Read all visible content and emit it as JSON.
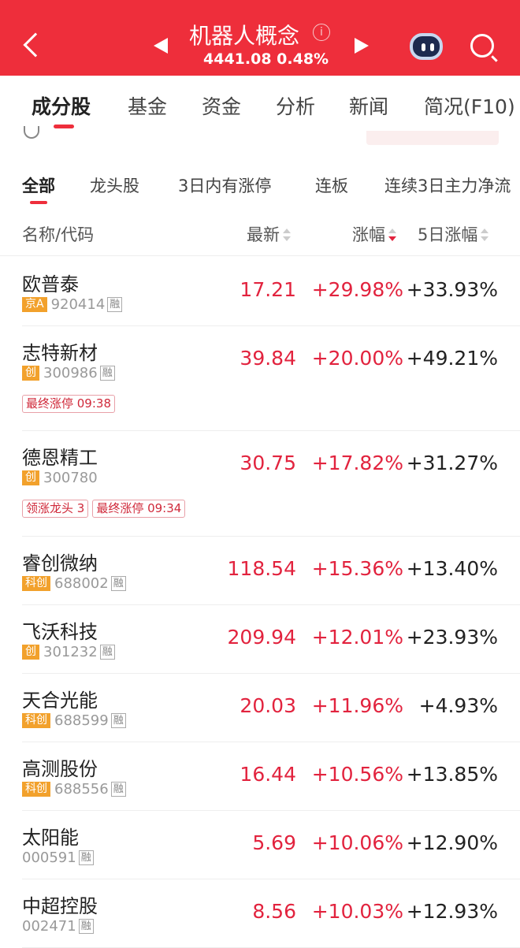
{
  "header": {
    "title": "机器人概念",
    "index_value": "4441.08",
    "index_change": "0.48%",
    "color": "#ee2e3b"
  },
  "tabs": [
    {
      "label": "成分股"
    },
    {
      "label": "基金"
    },
    {
      "label": "资金"
    },
    {
      "label": "分析"
    },
    {
      "label": "新闻"
    },
    {
      "label": "简况(F10)"
    }
  ],
  "subtabs": [
    {
      "label": "全部"
    },
    {
      "label": "龙头股"
    },
    {
      "label": "3日内有涨停"
    },
    {
      "label": "连板"
    },
    {
      "label": "连续3日主力净流"
    }
  ],
  "columns": {
    "name": "名称/代码",
    "price": "最新",
    "change": "涨幅",
    "change5d": "5日涨幅"
  },
  "stocks": [
    {
      "name": "欧普泰",
      "board": "京A",
      "code": "920414",
      "rong": "融",
      "price": "17.21",
      "change": "+29.98%",
      "change5d": "+33.93%",
      "tags": []
    },
    {
      "name": "志特新材",
      "board": "创",
      "code": "300986",
      "rong": "融",
      "price": "39.84",
      "change": "+20.00%",
      "change5d": "+49.21%",
      "tags": [
        "最终涨停 09:38"
      ]
    },
    {
      "name": "德恩精工",
      "board": "创",
      "code": "300780",
      "rong": "",
      "price": "30.75",
      "change": "+17.82%",
      "change5d": "+31.27%",
      "tags": [
        "领涨龙头 3",
        "最终涨停 09:34"
      ]
    },
    {
      "name": "睿创微纳",
      "board": "科创",
      "code": "688002",
      "rong": "融",
      "price": "118.54",
      "change": "+15.36%",
      "change5d": "+13.40%",
      "tags": []
    },
    {
      "name": "飞沃科技",
      "board": "创",
      "code": "301232",
      "rong": "融",
      "price": "209.94",
      "change": "+12.01%",
      "change5d": "+23.93%",
      "tags": []
    },
    {
      "name": "天合光能",
      "board": "科创",
      "code": "688599",
      "rong": "融",
      "price": "20.03",
      "change": "+11.96%",
      "change5d": "+4.93%",
      "tags": []
    },
    {
      "name": "高测股份",
      "board": "科创",
      "code": "688556",
      "rong": "融",
      "price": "16.44",
      "change": "+10.56%",
      "change5d": "+13.85%",
      "tags": []
    },
    {
      "name": "太阳能",
      "board": "",
      "code": "000591",
      "rong": "融",
      "price": "5.69",
      "change": "+10.06%",
      "change5d": "+12.90%",
      "tags": []
    },
    {
      "name": "中超控股",
      "board": "",
      "code": "002471",
      "rong": "融",
      "price": "8.56",
      "change": "+10.03%",
      "change5d": "+12.93%",
      "tags": []
    }
  ]
}
